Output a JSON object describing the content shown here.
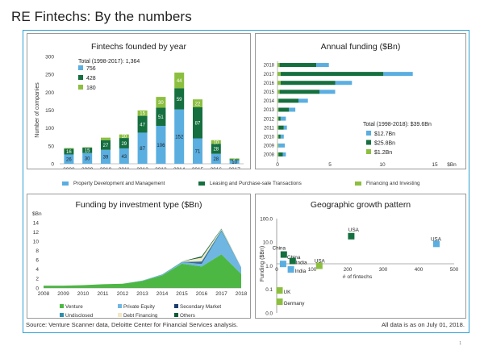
{
  "page": {
    "title": "RE Fintechs: By the numbers",
    "source": "Source: Venture Scanner data, Deloitte Center for Financial Services analysis.",
    "note": "All data is as on July 01, 2018.",
    "page_number": "1"
  },
  "colors": {
    "light_blue": "#5aaee0",
    "dark_green": "#156f3f",
    "light_green": "#8cbf3f",
    "border_blue": "#2d9fd3",
    "panel_border": "#9a9a9a"
  },
  "shared_legend": [
    {
      "label": "Property Development and Management",
      "color": "#5aaee0"
    },
    {
      "label": "Leasing and Purchase-sale Transactions",
      "color": "#156f3f"
    },
    {
      "label": "Financing and Investing",
      "color": "#8cbf3f"
    }
  ],
  "chart_data": [
    {
      "type": "bar",
      "stacked": true,
      "title": "Fintechs founded by year",
      "ylabel": "Number of companies",
      "ylim": [
        0,
        300
      ],
      "yticks": [
        0,
        50,
        100,
        150,
        200,
        250,
        300
      ],
      "categories": [
        "2008",
        "2009",
        "2010",
        "2011",
        "2012",
        "2013",
        "2014",
        "2015",
        "2016",
        "2017"
      ],
      "series": [
        {
          "values": [
            26,
            30,
            39,
            43,
            87,
            106,
            152,
            71,
            28,
            10
          ],
          "color": "#5aaee0"
        },
        {
          "values": [
            16,
            15,
            27,
            29,
            47,
            51,
            59,
            87,
            28,
            3
          ],
          "color": "#156f3f"
        },
        {
          "values": [
            2,
            1,
            7,
            10,
            15,
            30,
            44,
            22,
            10,
            2
          ],
          "color": "#8cbf3f"
        }
      ],
      "labels": {
        "s0": [
          "26",
          "30",
          "39",
          "43",
          "87",
          "106",
          "152",
          "71",
          "28",
          "10"
        ],
        "s1": [
          "16",
          "15",
          "27",
          "29",
          "47",
          "51",
          "59",
          "87",
          "28",
          ""
        ],
        "s2": [
          "",
          "",
          "",
          "10",
          "15",
          "30",
          "44",
          "22",
          "10",
          "2"
        ]
      },
      "total_text": "Total (1998-2017): 1,364",
      "legend": [
        {
          "label": "756",
          "color": "#5aaee0"
        },
        {
          "label": "428",
          "color": "#156f3f"
        },
        {
          "label": "180",
          "color": "#8cbf3f"
        }
      ]
    },
    {
      "type": "bar",
      "orientation": "horizontal",
      "stacked": true,
      "title": "Annual funding ($Bn)",
      "xlabel": "$Bn",
      "xlim": [
        0,
        15
      ],
      "xticks": [
        0,
        5,
        10,
        15
      ],
      "categories": [
        "2018",
        "2017",
        "2016",
        "2015",
        "2014",
        "2013",
        "2012",
        "2011",
        "2010",
        "2009",
        "2008"
      ],
      "series": [
        {
          "values": [
            0.2,
            0.3,
            0.3,
            0.2,
            0.1,
            0.1,
            0.1,
            0.1,
            0.1,
            0.1,
            0.1
          ],
          "color": "#8cbf3f"
        },
        {
          "values": [
            3.5,
            9.8,
            5.2,
            3.8,
            1.9,
            1.0,
            0.2,
            0.5,
            0.2,
            0.0,
            0.4
          ],
          "color": "#156f3f"
        },
        {
          "values": [
            1.2,
            2.8,
            1.6,
            1.5,
            0.9,
            0.6,
            0.5,
            0.3,
            0.3,
            0.6,
            0.3
          ],
          "color": "#5aaee0"
        }
      ],
      "total_text": "Total (1998-2018): $39.6Bn",
      "legend": [
        {
          "label": "$12.7Bn",
          "color": "#5aaee0"
        },
        {
          "label": "$25.8Bn",
          "color": "#156f3f"
        },
        {
          "label": "$1.2Bn",
          "color": "#8cbf3f"
        }
      ]
    },
    {
      "type": "area",
      "stacked": true,
      "title": "Funding by investment type ($Bn)",
      "ylabel": "$Bn",
      "ylim": [
        0,
        14
      ],
      "yticks": [
        0,
        2,
        4,
        6,
        8,
        10,
        12,
        14
      ],
      "categories": [
        "2008",
        "2009",
        "2010",
        "2011",
        "2012",
        "2013",
        "2014",
        "2015",
        "2016",
        "2017",
        "2018"
      ],
      "series": [
        {
          "name": "Venture",
          "values": [
            0.5,
            0.5,
            0.6,
            0.8,
            0.9,
            1.5,
            2.7,
            5.2,
            4.6,
            7.2,
            3.0
          ],
          "color": "#4cb843"
        },
        {
          "name": "Private Equity",
          "values": [
            0.0,
            0.0,
            0.0,
            0.0,
            0.0,
            0.1,
            0.1,
            0.3,
            0.6,
            4.9,
            1.3
          ],
          "color": "#6fb6e3"
        },
        {
          "name": "Secondary Market",
          "values": [
            0.0,
            0.0,
            0.0,
            0.0,
            0.0,
            0.0,
            0.0,
            0.0,
            0.3,
            0.0,
            0.0
          ],
          "color": "#1b3d6e"
        },
        {
          "name": "Undisclosed",
          "values": [
            0.0,
            0.0,
            0.0,
            0.0,
            0.0,
            0.0,
            0.1,
            0.1,
            0.2,
            0.3,
            0.1
          ],
          "color": "#2c8fb0"
        },
        {
          "name": "Debt Financing",
          "values": [
            0.0,
            0.0,
            0.0,
            0.0,
            0.0,
            0.0,
            0.0,
            0.1,
            0.8,
            0.2,
            0.1
          ],
          "color": "#f3e7c4"
        },
        {
          "name": "Others",
          "values": [
            0.0,
            0.0,
            0.0,
            0.0,
            0.0,
            0.0,
            0.0,
            0.0,
            0.3,
            0.1,
            0.0
          ],
          "color": "#0c5b34"
        }
      ]
    },
    {
      "type": "scatter",
      "title": "Geographic growth pattern",
      "xlabel": "# of fintechs",
      "ylabel": "Funding ($Bn)",
      "xlim": [
        0,
        500
      ],
      "xticks": [
        0,
        100,
        200,
        300,
        400,
        500
      ],
      "ylim": [
        0.01,
        100
      ],
      "yscale": "log",
      "yticks": [
        {
          "value": 0.01,
          "label": "0.0"
        },
        {
          "value": 0.1,
          "label": "0.1"
        },
        {
          "value": 1,
          "label": "1.0"
        },
        {
          "value": 10,
          "label": "10.0"
        },
        {
          "value": 100,
          "label": "100.0"
        }
      ],
      "points": [
        {
          "label": "USA",
          "x": 210,
          "y": 18,
          "color": "#156f3f"
        },
        {
          "label": "USA",
          "x": 450,
          "y": 8.5,
          "color": "#5aaee0"
        },
        {
          "label": "USA",
          "x": 120,
          "y": 1.0,
          "color": "#8cbf3f"
        },
        {
          "label": "China",
          "x": 20,
          "y": 3.0,
          "color": "#156f3f"
        },
        {
          "label": "China",
          "x": 18,
          "y": 1.2,
          "color": "#5aaee0"
        },
        {
          "label": "India",
          "x": 45,
          "y": 1.6,
          "color": "#156f3f"
        },
        {
          "label": "India",
          "x": 40,
          "y": 0.7,
          "color": "#5aaee0"
        },
        {
          "label": "UK",
          "x": 8,
          "y": 0.09,
          "color": "#8cbf3f"
        },
        {
          "label": "Germany",
          "x": 8,
          "y": 0.03,
          "color": "#8cbf3f"
        }
      ]
    }
  ]
}
